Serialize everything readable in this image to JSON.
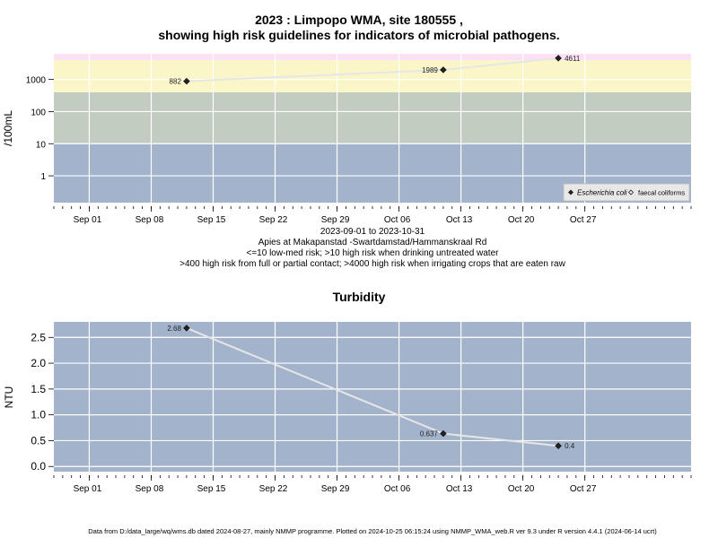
{
  "page": {
    "title_line1": "2023 : Limpopo WMA, site 180555 ,",
    "title_line2": "showing high risk guidelines for indicators of microbial pathogens.",
    "date_range": "2023-09-01 to 2023-10-31",
    "site_name": "Apies at Makapanstad -Swartdamstad/Hammanskraal Rd",
    "guideline_line1": "<=10 low-med risk; >10 high risk when drinking untreated water",
    "guideline_line2": ">400 high risk from full or partial contact; >4000 high risk when irrigating crops that are eaten raw",
    "footer": "Data from D:/data_large/wq/wms.db dated 2024-08-27, mainly NMMP programme. Plotted on 2024-10-25 06:15:24 using NMMP_WMA_web.R ver 9.3 under R version 4.4.1 (2024-06-14 ucrt)"
  },
  "chart_data": [
    {
      "type": "line",
      "title": "",
      "xlabel": "",
      "ylabel": "/100mL",
      "y_scale": "log",
      "xlim": [
        "2023-08-28",
        "2023-11-08"
      ],
      "x_ticks": [
        {
          "date": "2023-09-01",
          "label": "Sep 01"
        },
        {
          "date": "2023-09-08",
          "label": "Sep 08"
        },
        {
          "date": "2023-09-15",
          "label": "Sep 15"
        },
        {
          "date": "2023-09-22",
          "label": "Sep 22"
        },
        {
          "date": "2023-09-29",
          "label": "Sep 29"
        },
        {
          "date": "2023-10-06",
          "label": "Oct 06"
        },
        {
          "date": "2023-10-13",
          "label": "Oct 13"
        },
        {
          "date": "2023-10-20",
          "label": "Oct 20"
        },
        {
          "date": "2023-10-27",
          "label": "Oct 27"
        }
      ],
      "y_ticks": [
        {
          "value": 1,
          "label": "1"
        },
        {
          "value": 10,
          "label": "10"
        },
        {
          "value": 100,
          "label": "100"
        },
        {
          "value": 1000,
          "label": "1000"
        }
      ],
      "grid": true,
      "risk_bands": [
        {
          "from": 0.1,
          "to": 10,
          "color": "#a3b3cc"
        },
        {
          "from": 10,
          "to": 400,
          "color": "#c3ccc0"
        },
        {
          "from": 400,
          "to": 4000,
          "color": "#fbf6c8"
        },
        {
          "from": 4000,
          "to": 100000,
          "color": "#fbe1f3"
        }
      ],
      "series": [
        {
          "name": "Escherichia coli",
          "marker": "filled-diamond",
          "line_color": "#e6e6e6",
          "points": [
            {
              "x": "2023-09-12",
              "y": 882,
              "label": "882"
            },
            {
              "x": "2023-10-11",
              "y": 1989,
              "label": "1989"
            },
            {
              "x": "2023-10-24",
              "y": 4611,
              "label": "4611"
            }
          ]
        },
        {
          "name": "faecal coliforms",
          "marker": "open-diamond",
          "points": []
        }
      ],
      "legend": "bottom-right"
    },
    {
      "type": "line",
      "title": "Turbidity",
      "xlabel": "",
      "ylabel": "NTU",
      "xlim": [
        "2023-08-28",
        "2023-11-08"
      ],
      "ylim": [
        -0.1,
        2.8
      ],
      "x_ticks": [
        {
          "date": "2023-09-01",
          "label": "Sep 01"
        },
        {
          "date": "2023-09-08",
          "label": "Sep 08"
        },
        {
          "date": "2023-09-15",
          "label": "Sep 15"
        },
        {
          "date": "2023-09-22",
          "label": "Sep 22"
        },
        {
          "date": "2023-09-29",
          "label": "Sep 29"
        },
        {
          "date": "2023-10-06",
          "label": "Oct 06"
        },
        {
          "date": "2023-10-13",
          "label": "Oct 13"
        },
        {
          "date": "2023-10-20",
          "label": "Oct 20"
        },
        {
          "date": "2023-10-27",
          "label": "Oct 27"
        }
      ],
      "y_ticks": [
        {
          "value": 0.0,
          "label": "0.0"
        },
        {
          "value": 0.5,
          "label": "0.5"
        },
        {
          "value": 1.0,
          "label": "1.0"
        },
        {
          "value": 1.5,
          "label": "1.5"
        },
        {
          "value": 2.0,
          "label": "2.0"
        },
        {
          "value": 2.5,
          "label": "2.5"
        }
      ],
      "grid": true,
      "background": "#a3b3cc",
      "series": [
        {
          "name": "",
          "line_color": "#e6e6e6",
          "points": [
            {
              "x": "2023-09-12",
              "y": 2.68,
              "label": "2.68"
            },
            {
              "x": "2023-10-11",
              "y": 0.637,
              "label": "0.637"
            },
            {
              "x": "2023-10-24",
              "y": 0.4,
              "label": "0.4"
            }
          ]
        }
      ]
    }
  ]
}
